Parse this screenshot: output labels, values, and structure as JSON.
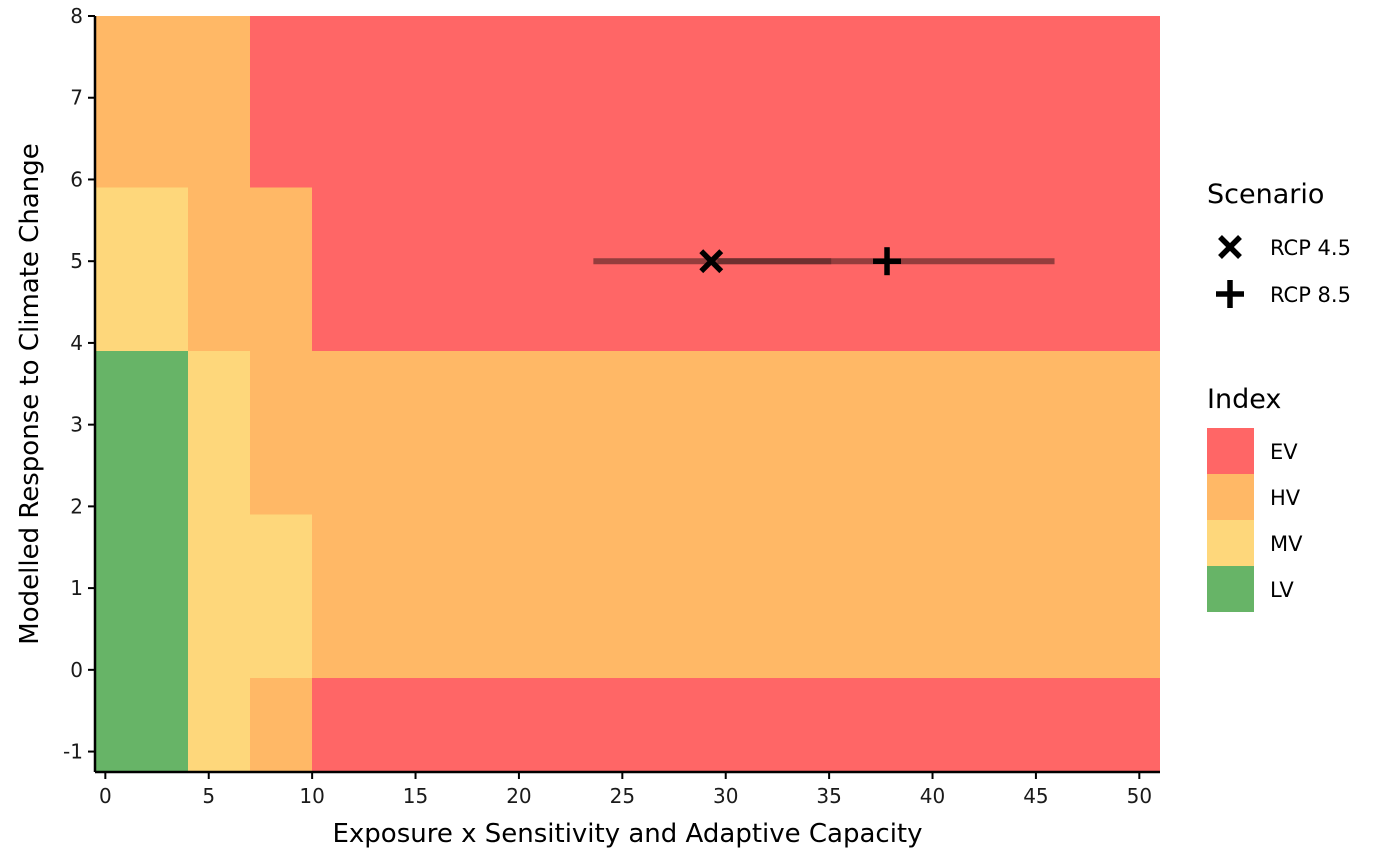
{
  "chart_data": {
    "type": "heatmap",
    "xlabel": "Exposure x Sensitivity and Adaptive Capacity",
    "ylabel": "Modelled Response to Climate Change",
    "xlim": [
      -0.5,
      51
    ],
    "ylim": [
      -1.25,
      8
    ],
    "x_ticks": [
      0,
      5,
      10,
      15,
      20,
      25,
      30,
      35,
      40,
      45,
      50
    ],
    "x_tick_labels": [
      "0",
      "5",
      "10",
      "15",
      "20",
      "25",
      "30",
      "35",
      "40",
      "45",
      "50"
    ],
    "y_ticks": [
      -1,
      0,
      1,
      2,
      3,
      4,
      5,
      6,
      7,
      8
    ],
    "y_tick_labels": [
      "-1",
      "0",
      "1",
      "2",
      "3",
      "4",
      "5",
      "6",
      "7",
      "8"
    ],
    "grid": false,
    "index_colors": {
      "EV": "#ff6666",
      "HV": "#ffb866",
      "MV": "#fed77b",
      "LV": "#67b467"
    },
    "regions": [
      {
        "x": [
          -0.5,
          4
        ],
        "y": [
          -1.25,
          3.9
        ],
        "index": "LV"
      },
      {
        "x": [
          -0.5,
          4
        ],
        "y": [
          3.9,
          5.9
        ],
        "index": "MV"
      },
      {
        "x": [
          -0.5,
          4
        ],
        "y": [
          5.9,
          8
        ],
        "index": "HV"
      },
      {
        "x": [
          4,
          7
        ],
        "y": [
          -1.25,
          3.9
        ],
        "index": "MV"
      },
      {
        "x": [
          4,
          7
        ],
        "y": [
          3.9,
          8
        ],
        "index": "HV"
      },
      {
        "x": [
          7,
          10
        ],
        "y": [
          -1.25,
          -0.1
        ],
        "index": "HV"
      },
      {
        "x": [
          7,
          10
        ],
        "y": [
          -0.1,
          1.9
        ],
        "index": "MV"
      },
      {
        "x": [
          7,
          10
        ],
        "y": [
          1.9,
          5.9
        ],
        "index": "HV"
      },
      {
        "x": [
          7,
          10
        ],
        "y": [
          5.9,
          8
        ],
        "index": "EV"
      },
      {
        "x": [
          10,
          51
        ],
        "y": [
          -1.25,
          -0.1
        ],
        "index": "EV"
      },
      {
        "x": [
          10,
          51
        ],
        "y": [
          -0.1,
          3.9
        ],
        "index": "HV"
      },
      {
        "x": [
          10,
          51
        ],
        "y": [
          3.9,
          8
        ],
        "index": "EV"
      },
      {
        "x": [
          4,
          7
        ],
        "y": [
          5.9,
          8
        ],
        "index": "HV"
      }
    ],
    "points": [
      {
        "scenario": "RCP 4.5",
        "x": 29.3,
        "y": 5,
        "x_range": [
          23.6,
          35.1
        ],
        "shape": "cross"
      },
      {
        "scenario": "RCP 8.5",
        "x": 37.8,
        "y": 5,
        "x_range": [
          29.6,
          45.9
        ],
        "shape": "plus"
      }
    ],
    "range_line_color": "#5a2828",
    "legend": {
      "placement": "right",
      "scenario_title": "Scenario",
      "scenario_items": [
        {
          "label": "RCP 4.5",
          "shape": "cross"
        },
        {
          "label": "RCP 8.5",
          "shape": "plus"
        }
      ],
      "index_title": "Index",
      "index_items": [
        "EV",
        "HV",
        "MV",
        "LV"
      ]
    }
  }
}
